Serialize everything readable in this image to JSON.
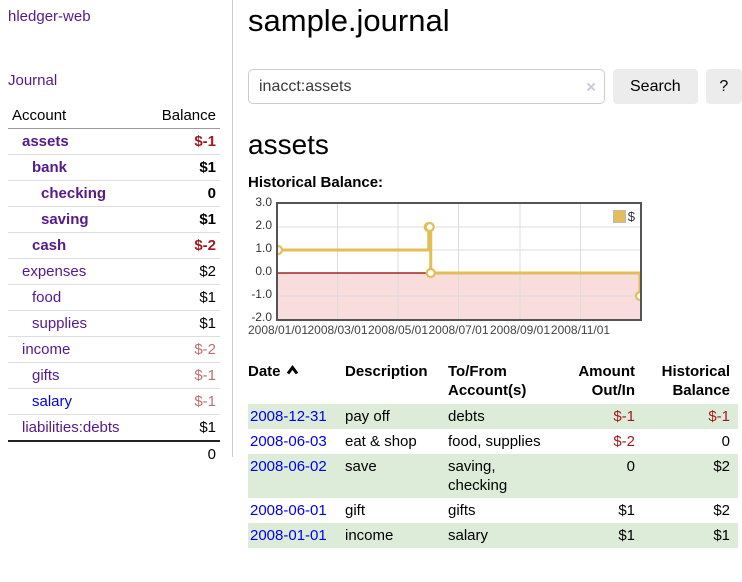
{
  "app": {
    "brand": "hledger-web",
    "nav": {
      "journal": "Journal"
    }
  },
  "sidebar": {
    "header": {
      "account": "Account",
      "balance": "Balance"
    },
    "accounts": [
      {
        "name": "assets",
        "balance": "$-1"
      },
      {
        "name": "bank",
        "balance": "$1"
      },
      {
        "name": "checking",
        "balance": "0"
      },
      {
        "name": "saving",
        "balance": "$1"
      },
      {
        "name": "cash",
        "balance": "$-2"
      },
      {
        "name": "expenses",
        "balance": "$2"
      },
      {
        "name": "food",
        "balance": "$1"
      },
      {
        "name": "supplies",
        "balance": "$1"
      },
      {
        "name": "income",
        "balance": "$-2"
      },
      {
        "name": "gifts",
        "balance": "$-1"
      },
      {
        "name": "salary",
        "balance": "$-1"
      },
      {
        "name": "liabilities:debts",
        "balance": "$1"
      }
    ],
    "total": "0"
  },
  "header": {
    "title": "sample.journal"
  },
  "search": {
    "query": "inacct:assets",
    "clear_icon": "×",
    "button": "Search",
    "help_button": "?"
  },
  "register": {
    "heading": "assets",
    "chart_label": "Historical Balance:",
    "table": {
      "headers": {
        "date": "Date",
        "description": "Description",
        "accounts": "To/From Account(s)",
        "amount": "Amount Out/In",
        "balance": "Historical Balance"
      },
      "rows": [
        {
          "date": "2008-12-31",
          "description": "pay off",
          "accounts": "debts",
          "amount": "$-1",
          "balance": "$-1"
        },
        {
          "date": "2008-06-03",
          "description": "eat & shop",
          "accounts": "food, supplies",
          "amount": "$-2",
          "balance": "0"
        },
        {
          "date": "2008-06-02",
          "description": "save",
          "accounts": "saving,\nchecking",
          "amount": "0",
          "balance": "$2"
        },
        {
          "date": "2008-06-01",
          "description": "gift",
          "accounts": "gifts",
          "amount": "$1",
          "balance": "$2"
        },
        {
          "date": "2008-01-01",
          "description": "income",
          "accounts": "salary",
          "amount": "$1",
          "balance": "$1"
        }
      ]
    }
  },
  "chart_data": {
    "type": "line",
    "step": true,
    "title": "Historical Balance",
    "series": [
      {
        "name": "$",
        "color": "#e3bd55",
        "points": [
          [
            "2008-01-01",
            1
          ],
          [
            "2008-06-01",
            2
          ],
          [
            "2008-06-02",
            2
          ],
          [
            "2008-06-03",
            0
          ],
          [
            "2008-12-31",
            -1
          ]
        ]
      }
    ],
    "xrange": [
      "2008-01-01",
      "2008-12-31"
    ],
    "ylim": [
      -2,
      3
    ],
    "yticks": [
      "3.0",
      "2.0",
      "1.0",
      "0.0",
      "-1.0",
      "-2.0"
    ],
    "xticks": [
      "2008/01/01",
      "2008/03/01",
      "2008/05/01",
      "2008/07/01",
      "2008/09/01",
      "2008/11/01"
    ],
    "legend": {
      "label": "$",
      "position": "top-right"
    },
    "grid": true,
    "negative_fill": "#f9dcdc",
    "zero_line_color": "#8b0000",
    "grid_color": "#dddddd",
    "border_color": "#545454"
  }
}
